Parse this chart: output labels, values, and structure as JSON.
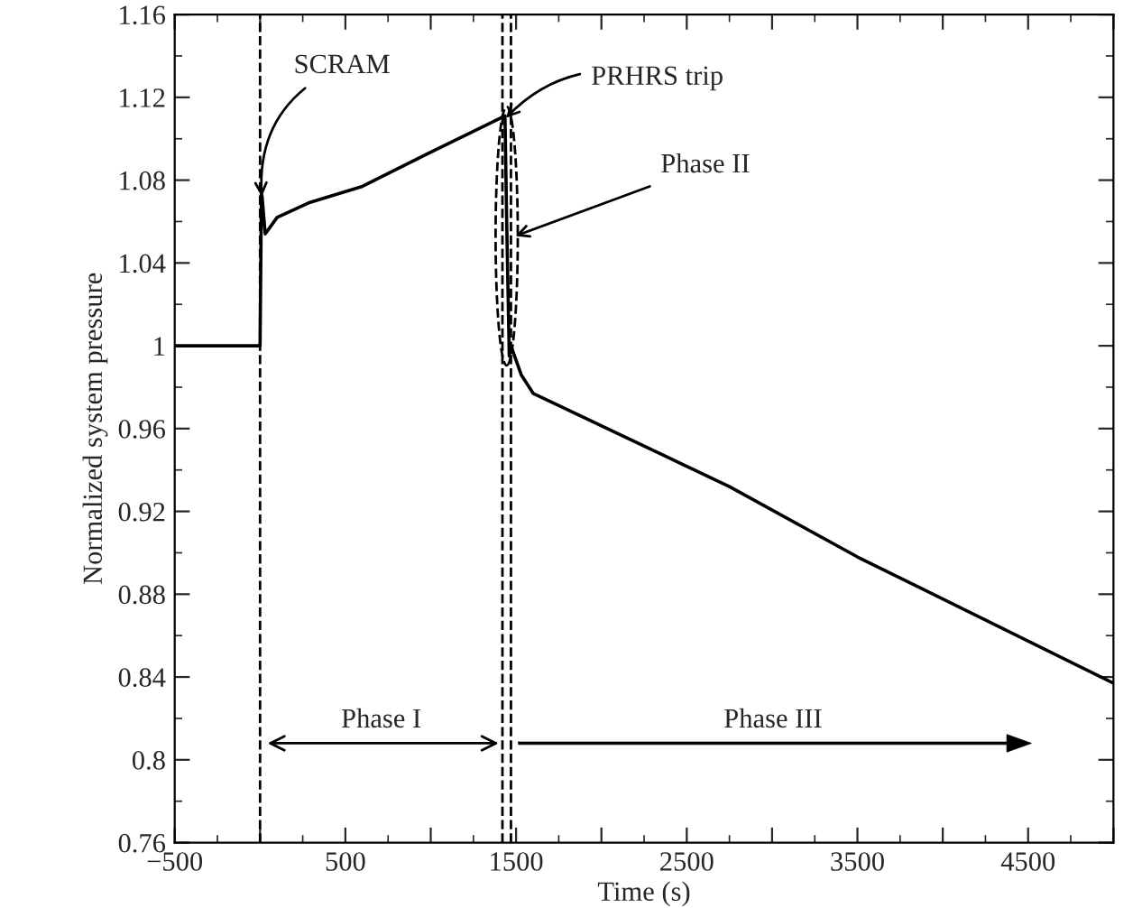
{
  "chart_data": {
    "type": "line",
    "xlabel": "Time (s)",
    "ylabel": "Normalized system pressure",
    "x": [
      -500,
      0,
      8,
      12,
      30,
      100,
      284,
      600,
      986,
      1435,
      1445,
      1460,
      1470,
      1530,
      1600,
      2750,
      3500,
      5000
    ],
    "series": [
      {
        "color": "#000000",
        "values": [
          1.0,
          1.0,
          1.073,
          1.072,
          1.054,
          1.062,
          1.069,
          1.077,
          1.093,
          1.111,
          1.06,
          0.995,
          1.0,
          0.986,
          0.977,
          0.932,
          0.898,
          0.837
        ]
      }
    ],
    "xlim": [
      -500,
      5000
    ],
    "xticks": [
      -500,
      {
        "value": 0,
        "label": null
      },
      500,
      {
        "value": 1000,
        "label": null
      },
      1500,
      {
        "value": 2000,
        "label": null
      },
      2500,
      {
        "value": 3000,
        "label": null
      },
      3500,
      {
        "value": 4000,
        "label": null
      },
      4500,
      {
        "value": 5000,
        "label": null
      }
    ],
    "ylim": [
      0.76,
      1.16
    ],
    "yticks": [
      0.76,
      0.8,
      0.84,
      0.88,
      0.92,
      0.96,
      1,
      1.04,
      1.08,
      1.12,
      1.16
    ],
    "ref_lines": [
      {
        "axis": "x",
        "value": 0,
        "line_style": "dashed",
        "color": "#000000"
      },
      {
        "axis": "x",
        "value": 1420,
        "line_style": "dashed",
        "color": "#000000"
      },
      {
        "axis": "x",
        "value": 1470,
        "line_style": "dashed",
        "color": "#000000"
      }
    ],
    "annotations": [
      {
        "text": "SCRAM",
        "x": 10,
        "y": 1.072
      },
      {
        "text": "PRHRS trip",
        "x": 1440,
        "y": 1.11
      },
      {
        "text": "Phase II",
        "x": 1495,
        "y": 1.053
      },
      "Phase I",
      "Phase III"
    ],
    "grid": false,
    "legend": false,
    "marker": "none",
    "line_style": "solid"
  }
}
